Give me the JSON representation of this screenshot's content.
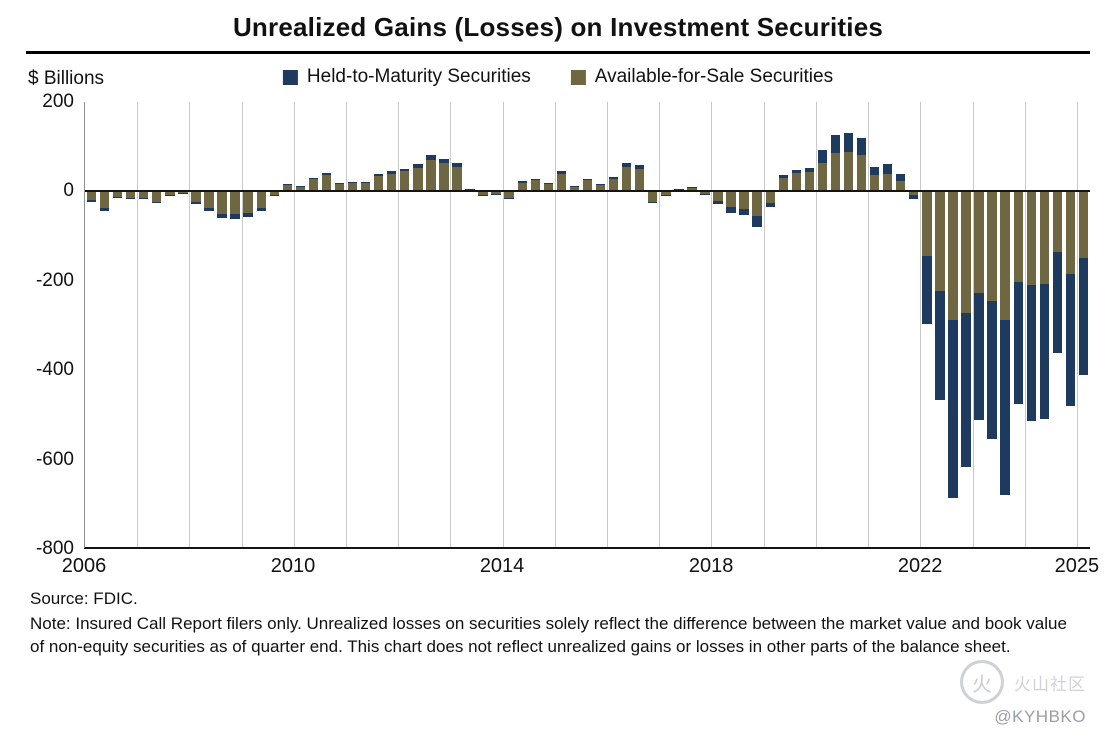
{
  "title": "Unrealized Gains (Losses) on Investment Securities",
  "source": "Source: FDIC.",
  "note": "Note: Insured Call Report filers only. Unrealized losses on securities solely reflect the difference between the market value and book value of non-equity securities as of quarter end. This chart does not reflect unrealized gains or losses in other parts of the balance sheet.",
  "watermark": {
    "logo_glyph": "火",
    "logo_text": "火山社区",
    "handle": "@KYHBKO"
  },
  "chart_data": {
    "type": "bar",
    "stacked": true,
    "title": "Unrealized Gains (Losses) on Investment Securities",
    "ylabel": "$ Billions",
    "units": "USD billions",
    "ylim": [
      -800,
      200
    ],
    "y_ticks": [
      200,
      0,
      -200,
      -400,
      -600,
      -800
    ],
    "grid": "vertical-year-lines",
    "legend_position": "top-center",
    "stack_order": [
      1,
      0
    ],
    "x_ticks": [
      {
        "label": "2006",
        "quarter_index": 0
      },
      {
        "label": "2010",
        "quarter_index": 16
      },
      {
        "label": "2014",
        "quarter_index": 32
      },
      {
        "label": "2018",
        "quarter_index": 48
      },
      {
        "label": "2022",
        "quarter_index": 64
      },
      {
        "label": "2025",
        "quarter_index": 76
      }
    ],
    "quarters": [
      "2006 Q1",
      "2006 Q2",
      "2006 Q3",
      "2006 Q4",
      "2007 Q1",
      "2007 Q2",
      "2007 Q3",
      "2007 Q4",
      "2008 Q1",
      "2008 Q2",
      "2008 Q3",
      "2008 Q4",
      "2009 Q1",
      "2009 Q2",
      "2009 Q3",
      "2009 Q4",
      "2010 Q1",
      "2010 Q2",
      "2010 Q3",
      "2010 Q4",
      "2011 Q1",
      "2011 Q2",
      "2011 Q3",
      "2011 Q4",
      "2012 Q1",
      "2012 Q2",
      "2012 Q3",
      "2012 Q4",
      "2013 Q1",
      "2013 Q2",
      "2013 Q3",
      "2013 Q4",
      "2014 Q1",
      "2014 Q2",
      "2014 Q3",
      "2014 Q4",
      "2015 Q1",
      "2015 Q2",
      "2015 Q3",
      "2015 Q4",
      "2016 Q1",
      "2016 Q2",
      "2016 Q3",
      "2016 Q4",
      "2017 Q1",
      "2017 Q2",
      "2017 Q3",
      "2017 Q4",
      "2018 Q1",
      "2018 Q2",
      "2018 Q3",
      "2018 Q4",
      "2019 Q1",
      "2019 Q2",
      "2019 Q3",
      "2019 Q4",
      "2020 Q1",
      "2020 Q2",
      "2020 Q3",
      "2020 Q4",
      "2021 Q1",
      "2021 Q2",
      "2021 Q3",
      "2021 Q4",
      "2022 Q1",
      "2022 Q2",
      "2022 Q3",
      "2022 Q4",
      "2023 Q1",
      "2023 Q2",
      "2023 Q3",
      "2023 Q4",
      "2024 Q1",
      "2024 Q2",
      "2024 Q3",
      "2024 Q4",
      "2025 Q1"
    ],
    "series": [
      {
        "name": "Held-to-Maturity Securities",
        "color": "#1e3a5f",
        "values": [
          -4,
          -6,
          -2,
          -3,
          -3,
          -4,
          -2,
          -1,
          -5,
          -7,
          -9,
          -10,
          -9,
          -7,
          -2,
          2,
          2,
          4,
          5,
          3,
          3,
          3,
          5,
          6,
          6,
          8,
          10,
          9,
          8,
          1,
          -2,
          -2,
          -3,
          3,
          4,
          3,
          6,
          2,
          4,
          2,
          4,
          8,
          8,
          -4,
          -2,
          1,
          1,
          -2,
          -7,
          -13,
          -15,
          -26,
          -8,
          5,
          8,
          9,
          28,
          40,
          43,
          40,
          20,
          22,
          15,
          -8,
          -155,
          -245,
          -400,
          -345,
          -285,
          -310,
          -394,
          -274,
          -305,
          -303,
          -227,
          -297,
          -263
        ]
      },
      {
        "name": "Available-for-Sale Securities",
        "color": "#6e6742",
        "values": [
          -21,
          -39,
          -13,
          -15,
          -15,
          -24,
          -8,
          -4,
          -25,
          -38,
          -51,
          -52,
          -49,
          -38,
          -10,
          13,
          10,
          26,
          35,
          15,
          17,
          17,
          33,
          39,
          44,
          52,
          70,
          63,
          54,
          4,
          -8,
          -6,
          -15,
          19,
          24,
          15,
          39,
          10,
          24,
          13,
          28,
          54,
          50,
          -24,
          -10,
          4,
          7,
          -6,
          -23,
          -37,
          -40,
          -56,
          -27,
          30,
          40,
          43,
          64,
          85,
          87,
          80,
          35,
          38,
          23,
          -10,
          -145,
          -225,
          -290,
          -275,
          -230,
          -248,
          -290,
          -204,
          -212,
          -210,
          -137,
          -186,
          -150
        ]
      }
    ]
  }
}
